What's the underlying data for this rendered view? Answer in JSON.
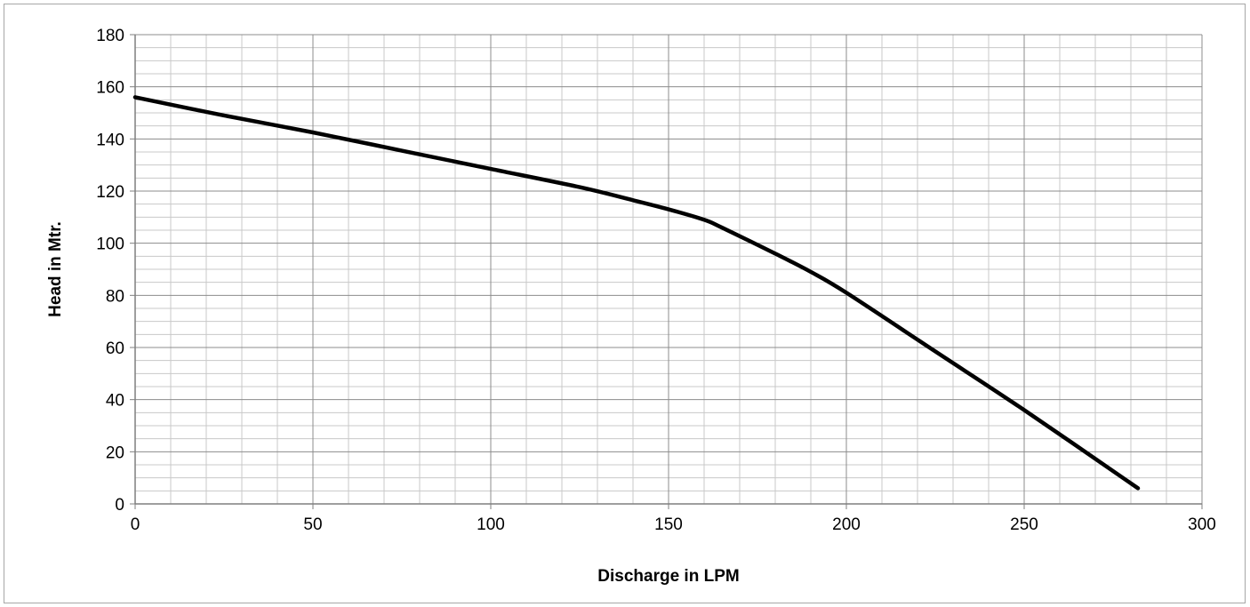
{
  "chart_data": {
    "type": "line",
    "title": "",
    "xlabel": "Discharge in LPM",
    "ylabel": "Head  in Mtr.",
    "xlim": [
      0,
      300
    ],
    "ylim": [
      0,
      180
    ],
    "x_ticks": [
      0,
      50,
      100,
      150,
      200,
      250,
      300
    ],
    "y_ticks": [
      0,
      20,
      40,
      60,
      80,
      100,
      120,
      140,
      160,
      180
    ],
    "x_ticks_text": [
      "0",
      "50",
      "100",
      "150",
      "200",
      "250",
      "300"
    ],
    "y_ticks_text": [
      "0",
      "20",
      "40",
      "60",
      "80",
      "100",
      "120",
      "140",
      "160",
      "180"
    ],
    "grid": true,
    "minor_grid": true,
    "legend": "none",
    "series": [
      {
        "color": "#000000",
        "x": [
          0,
          25,
          50,
          75,
          100,
          125,
          140,
          150,
          160,
          165,
          180,
          190,
          200,
          225,
          250,
          282
        ],
        "y": [
          156,
          149,
          142.5,
          135.5,
          128.5,
          121.5,
          116.5,
          113,
          109,
          106,
          96,
          89,
          81,
          58.5,
          36,
          6
        ]
      }
    ]
  }
}
